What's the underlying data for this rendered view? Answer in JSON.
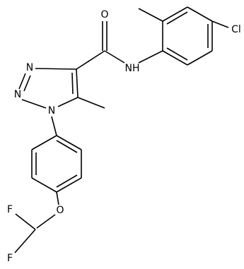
{
  "labels": [
    "O",
    "N",
    "N",
    "N",
    "NH",
    "Cl",
    "O",
    "F",
    "F"
  ]
}
